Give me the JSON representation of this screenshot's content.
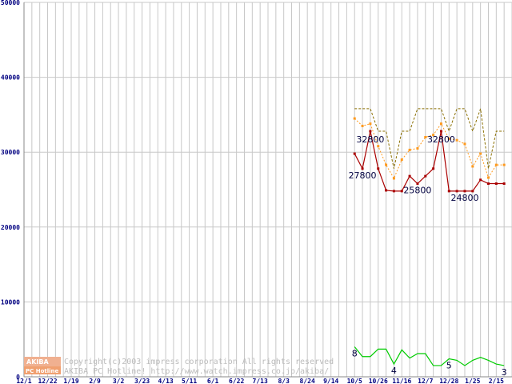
{
  "chart_data": {
    "type": "line",
    "ylim": [
      0,
      50000
    ],
    "y_ticks": [
      "0",
      "10000",
      "20000",
      "30000",
      "40000",
      "50000"
    ],
    "x_tick_labels": [
      "12/1",
      "12/22",
      "1/19",
      "2/9",
      "3/2",
      "3/23",
      "4/13",
      "5/11",
      "6/1",
      "6/22",
      "7/13",
      "8/3",
      "8/24",
      "9/14",
      "10/5",
      "10/26",
      "11/16",
      "12/7",
      "12/28",
      "1/25",
      "2/15"
    ],
    "grid": true,
    "series": [
      {
        "color": "#8b6f00",
        "style": "dashed",
        "x": [
          42,
          43,
          44,
          45,
          46,
          47,
          48,
          49,
          50,
          51,
          52,
          53,
          54,
          55,
          56,
          57,
          58,
          59,
          60,
          61
        ],
        "values": [
          35800,
          35800,
          35800,
          32800,
          32800,
          27800,
          32800,
          32800,
          35800,
          35800,
          35800,
          35800,
          32800,
          35800,
          35800,
          32800,
          35800,
          27800,
          32800,
          32800
        ]
      },
      {
        "color": "#ff9a1e",
        "style": "dotted",
        "markers": true,
        "x": [
          42,
          43,
          44,
          45,
          46,
          47,
          48,
          49,
          50,
          51,
          52,
          53,
          54,
          55,
          56,
          57,
          58,
          59,
          60,
          61
        ],
        "values": [
          34500,
          33500,
          33800,
          30800,
          28300,
          26500,
          29000,
          30300,
          30500,
          32000,
          32300,
          33800,
          31800,
          31600,
          31100,
          28100,
          29800,
          26600,
          28300,
          28300
        ]
      },
      {
        "color": "#aa0000",
        "style": "solid",
        "markers": true,
        "x": [
          42,
          43,
          44,
          45,
          46,
          47,
          48,
          49,
          50,
          51,
          52,
          53,
          54,
          55,
          56,
          57,
          58,
          59,
          60,
          61
        ],
        "values": [
          29800,
          27800,
          32800,
          27800,
          24900,
          24800,
          24800,
          26800,
          25800,
          26800,
          27800,
          32800,
          24800,
          24800,
          24800,
          24800,
          26300,
          25800,
          25800,
          25800
        ]
      },
      {
        "color": "#00cc00",
        "style": "solid",
        "x": [
          42,
          43,
          44,
          45,
          46,
          47,
          48,
          49,
          50,
          51,
          52,
          53,
          54,
          55,
          56,
          57,
          58,
          59,
          60,
          61
        ],
        "values": [
          4000,
          2700,
          2700,
          3700,
          3700,
          1700,
          3600,
          2500,
          3100,
          3100,
          1500,
          1500,
          2400,
          2200,
          1500,
          2200,
          2600,
          2200,
          1700,
          1500
        ]
      }
    ],
    "annotations": [
      {
        "text": "32800",
        "x": 44,
        "y": 32800
      },
      {
        "text": "27800",
        "x": 43,
        "y": 27800
      },
      {
        "text": "25800",
        "x": 50,
        "y": 25800
      },
      {
        "text": "32800",
        "x": 53,
        "y": 32800
      },
      {
        "text": "24800",
        "x": 56,
        "y": 24800
      },
      {
        "text": "8",
        "x": 42,
        "y": 4000
      },
      {
        "text": "4",
        "x": 47,
        "y": 1700
      },
      {
        "text": "5",
        "x": 54,
        "y": 2400
      },
      {
        "text": "3",
        "x": 61,
        "y": 1500
      }
    ]
  },
  "footer": {
    "copyright_line1": "Copyright(c)2003 impress corporation All rights reserved",
    "copyright_line2": "AKIBA PC Hotline! http://www.watch.impress.co.jp/akiba/",
    "logo_top": "AKIBA",
    "logo_bottom": "PC Hotline"
  },
  "colors": {
    "grid": "#c8c8c8",
    "axis_text": "#000080",
    "logo_orange": "#f0a070"
  }
}
